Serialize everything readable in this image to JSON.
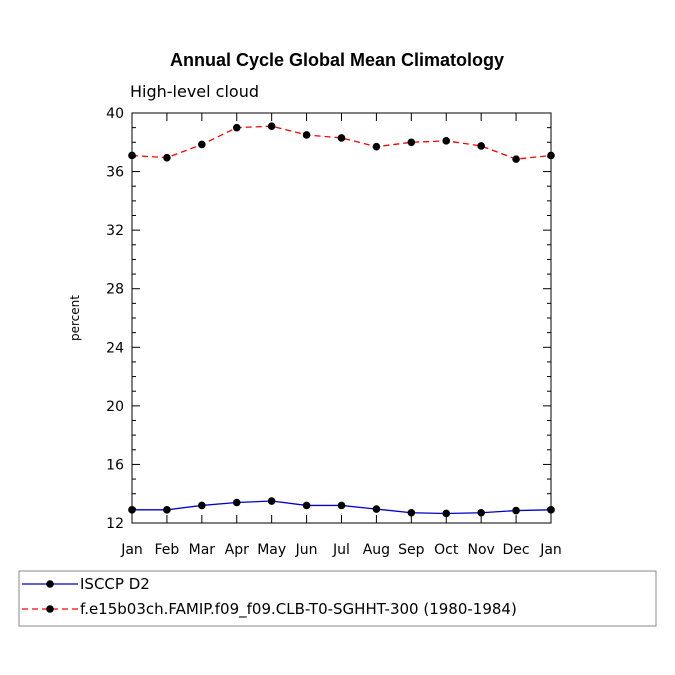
{
  "chart_data": {
    "type": "line",
    "title": "Annual Cycle Global Mean Climatology",
    "subtitle": "High-level cloud",
    "xlabel": "",
    "ylabel": "percent",
    "categories": [
      "Jan",
      "Feb",
      "Mar",
      "Apr",
      "May",
      "Jun",
      "Jul",
      "Aug",
      "Sep",
      "Oct",
      "Nov",
      "Dec",
      "Jan"
    ],
    "ylim": [
      12,
      40
    ],
    "yticks": [
      12,
      16,
      20,
      24,
      28,
      32,
      36,
      40
    ],
    "ytick_labels": [
      "12",
      "16",
      "20",
      "24",
      "28",
      "32",
      "36",
      "40"
    ],
    "grid": false,
    "legend_position": "bottom",
    "series": [
      {
        "name": "ISCCP D2",
        "color": "#0000cc",
        "line_style": "solid",
        "values": [
          12.9,
          12.9,
          13.2,
          13.4,
          13.5,
          13.2,
          13.2,
          12.95,
          12.7,
          12.65,
          12.7,
          12.85,
          12.9
        ]
      },
      {
        "name": "f.e15b03ch.FAMIP.f09_f09.CLB-T0-SGHHT-300 (1980-1984)",
        "color": "#ff0000",
        "line_style": "dashed",
        "values": [
          37.1,
          36.95,
          37.85,
          39.0,
          39.1,
          38.5,
          38.3,
          37.7,
          38.0,
          38.1,
          37.75,
          36.85,
          37.1
        ]
      }
    ]
  }
}
